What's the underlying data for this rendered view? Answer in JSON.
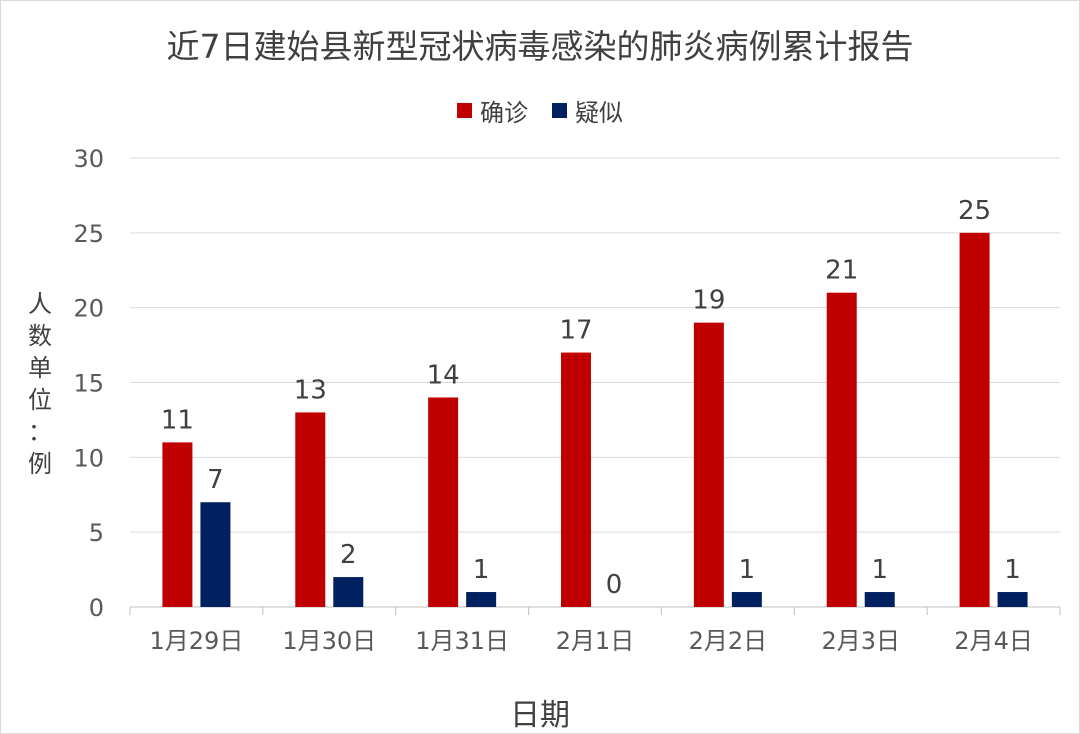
{
  "chart_data": {
    "type": "bar",
    "title": "近7日建始县新型冠状病毒感染的肺炎病例累计报告",
    "xlabel": "日期",
    "ylabel": [
      "人",
      "数",
      "单",
      "位",
      "：",
      "例"
    ],
    "categories": [
      "1月29日",
      "1月30日",
      "1月31日",
      "2月1日",
      "2月2日",
      "2月3日",
      "2月4日"
    ],
    "series": [
      {
        "name": "确诊",
        "color": "#c00000",
        "values": [
          11,
          13,
          14,
          17,
          19,
          21,
          25
        ]
      },
      {
        "name": "疑似",
        "color": "#002060",
        "values": [
          7,
          2,
          1,
          0,
          1,
          1,
          1
        ]
      }
    ],
    "ylim": [
      0,
      30
    ],
    "yticks": [
      0,
      5,
      10,
      15,
      20,
      25,
      30
    ],
    "grid": true,
    "legend_position": "top",
    "data_labels": true
  }
}
